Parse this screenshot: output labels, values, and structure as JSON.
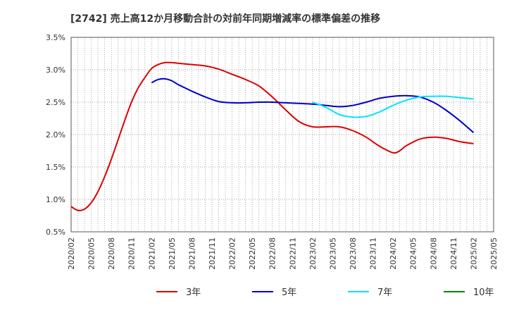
{
  "chart_data": {
    "type": "line",
    "title": "[2742]  売上高12か月移動合計の対前年同期増減率の標準偏差の推移",
    "xlabel": "",
    "ylabel": "",
    "x_ticks": [
      "2020/02",
      "2020/05",
      "2020/08",
      "2020/11",
      "2021/02",
      "2021/05",
      "2021/08",
      "2021/11",
      "2022/02",
      "2022/05",
      "2022/08",
      "2022/11",
      "2023/02",
      "2023/05",
      "2023/08",
      "2023/11",
      "2024/02",
      "2024/05",
      "2024/08",
      "2024/11",
      "2025/02",
      "2025/05"
    ],
    "y_ticks": [
      "0.5%",
      "1.0%",
      "1.5%",
      "2.0%",
      "2.5%",
      "3.0%",
      "3.5%"
    ],
    "ylim": [
      0.5,
      3.5
    ],
    "grid": "dotted",
    "legend": "bottom",
    "series": [
      {
        "name": "3年",
        "color": "#dd0000",
        "x": [
          "2020/02",
          "2020/03",
          "2020/04",
          "2020/05",
          "2020/06",
          "2020/07",
          "2020/08",
          "2020/09",
          "2020/10",
          "2020/11",
          "2020/12",
          "2021/01",
          "2021/02",
          "2021/03",
          "2021/04",
          "2021/05",
          "2021/06",
          "2021/08",
          "2021/10",
          "2021/12",
          "2022/02",
          "2022/04",
          "2022/06",
          "2022/08",
          "2022/10",
          "2022/12",
          "2023/02",
          "2023/04",
          "2023/06",
          "2023/08",
          "2023/10",
          "2023/12",
          "2024/02",
          "2024/03",
          "2024/04",
          "2024/06",
          "2024/08",
          "2024/10",
          "2024/12",
          "2025/02"
        ],
        "y": [
          0.89,
          0.83,
          0.85,
          0.95,
          1.12,
          1.35,
          1.62,
          1.92,
          2.22,
          2.5,
          2.72,
          2.88,
          3.02,
          3.08,
          3.11,
          3.11,
          3.1,
          3.08,
          3.06,
          3.01,
          2.93,
          2.85,
          2.75,
          2.58,
          2.38,
          2.2,
          2.12,
          2.12,
          2.12,
          2.06,
          1.96,
          1.82,
          1.72,
          1.75,
          1.83,
          1.93,
          1.96,
          1.94,
          1.89,
          1.86
        ]
      },
      {
        "name": "5年",
        "color": "#0000cc",
        "x": [
          "2021/02",
          "2021/03",
          "2021/04",
          "2021/05",
          "2021/06",
          "2021/08",
          "2021/10",
          "2021/12",
          "2022/02",
          "2022/04",
          "2022/06",
          "2022/08",
          "2022/10",
          "2022/12",
          "2023/02",
          "2023/04",
          "2023/06",
          "2023/08",
          "2023/10",
          "2023/12",
          "2024/02",
          "2024/04",
          "2024/06",
          "2024/08",
          "2024/10",
          "2024/12",
          "2025/02"
        ],
        "y": [
          2.8,
          2.85,
          2.86,
          2.83,
          2.77,
          2.67,
          2.58,
          2.51,
          2.49,
          2.49,
          2.5,
          2.5,
          2.49,
          2.48,
          2.47,
          2.45,
          2.43,
          2.45,
          2.5,
          2.56,
          2.59,
          2.6,
          2.58,
          2.5,
          2.37,
          2.21,
          2.03
        ]
      },
      {
        "name": "7年",
        "color": "#00e5ff",
        "x": [
          "2023/02",
          "2023/04",
          "2023/06",
          "2023/08",
          "2023/10",
          "2023/12",
          "2024/02",
          "2024/04",
          "2024/06",
          "2024/08",
          "2024/10",
          "2024/12",
          "2025/02"
        ],
        "y": [
          2.5,
          2.42,
          2.31,
          2.27,
          2.28,
          2.35,
          2.45,
          2.53,
          2.58,
          2.59,
          2.59,
          2.57,
          2.55
        ]
      },
      {
        "name": "10年",
        "color": "#008800",
        "x": [],
        "y": []
      }
    ]
  }
}
